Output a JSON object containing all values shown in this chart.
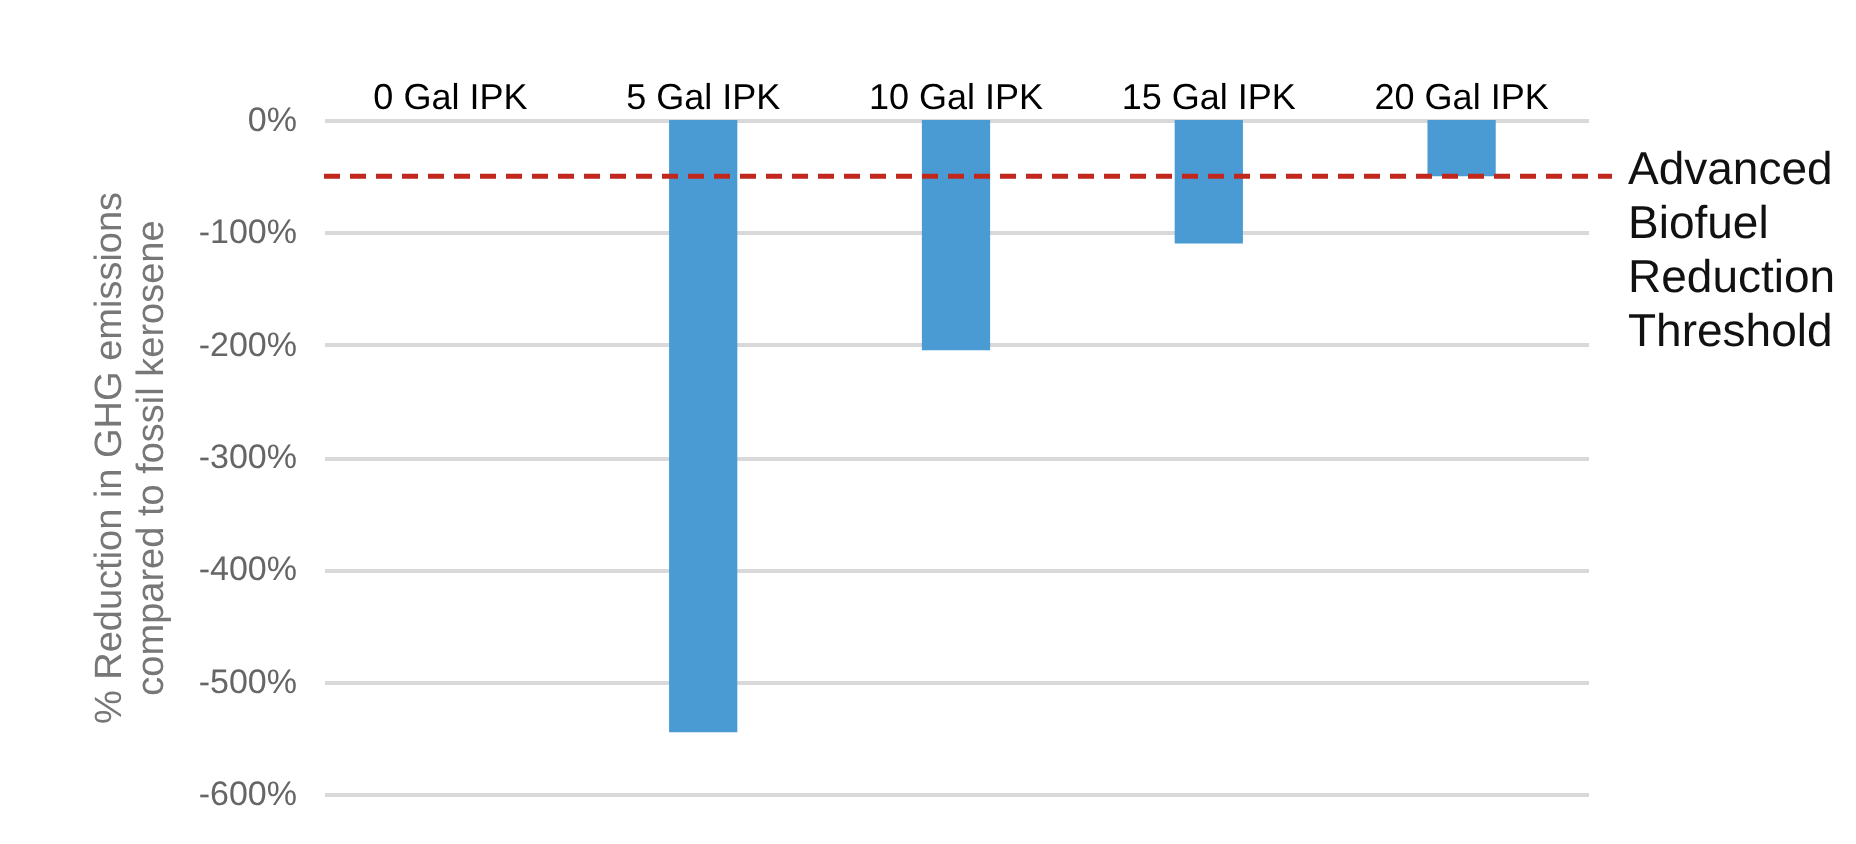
{
  "chart_data": {
    "type": "bar",
    "ylabel": "% Reduction in GHG emissions compared to fossil kerosene",
    "categories": [
      "0 Gal IPK",
      "5 Gal IPK",
      "10 Gal IPK",
      "15 Gal IPK",
      "20 Gal IPK"
    ],
    "values": [
      0,
      -545,
      -205,
      -110,
      -50
    ],
    "color": "#4a9bd4",
    "ylim": [
      -600,
      0
    ],
    "yticks": [
      {
        "value": 0,
        "label": "0%"
      },
      {
        "value": -100,
        "label": "-100%"
      },
      {
        "value": -200,
        "label": "-200%"
      },
      {
        "value": -300,
        "label": "-300%"
      },
      {
        "value": -400,
        "label": "-400%"
      },
      {
        "value": -500,
        "label": "-500%"
      },
      {
        "value": -600,
        "label": "-600%"
      }
    ],
    "grid": "y",
    "ref_lines": [
      {
        "axis": "y",
        "value": -50,
        "label": "Advanced Biofuel Reduction Threshold",
        "color": "#c0281e",
        "line_style": "dashed"
      }
    ]
  }
}
